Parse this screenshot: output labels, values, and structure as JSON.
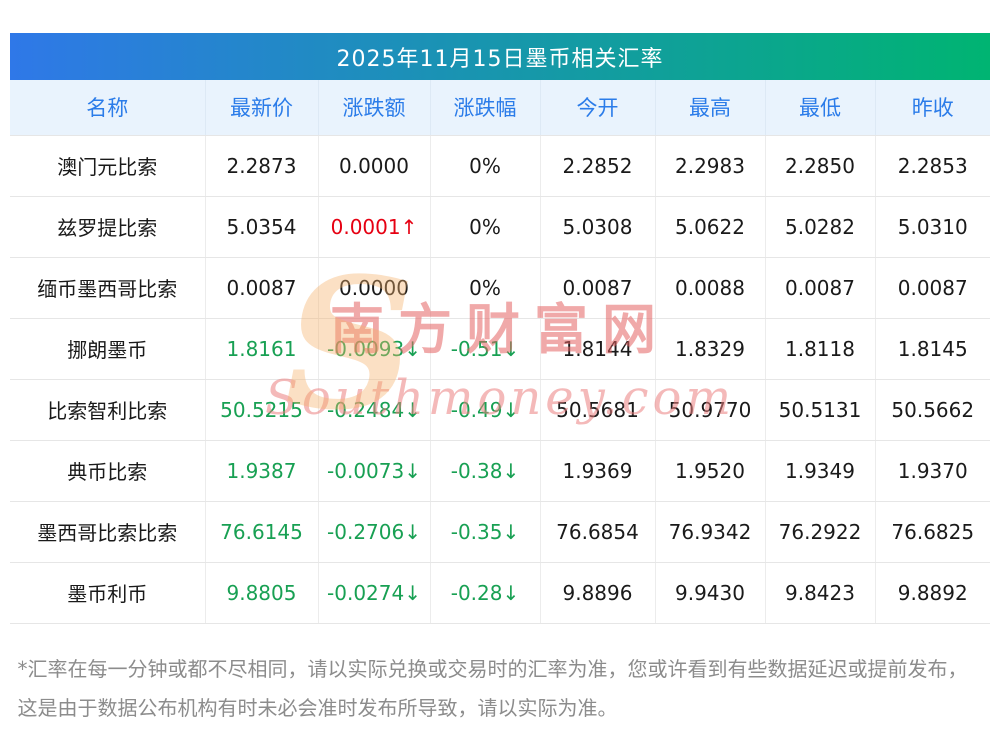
{
  "title": "2025年11月15日墨币相关汇率",
  "colors": {
    "title_gradient_left": "#2f78e8",
    "title_gradient_right": "#00b472",
    "header_bg": "#e9f3fd",
    "header_text": "#2b7ce9",
    "up_red": "#e60012",
    "down_green": "#18a053"
  },
  "table": {
    "headers": [
      "名称",
      "最新价",
      "涨跌额",
      "涨跌幅",
      "今开",
      "最高",
      "最低",
      "昨收"
    ],
    "rows": [
      {
        "cells": [
          {
            "t": "澳门元比索"
          },
          {
            "t": "2.2873"
          },
          {
            "t": "0.0000"
          },
          {
            "t": "0%"
          },
          {
            "t": "2.2852"
          },
          {
            "t": "2.2983"
          },
          {
            "t": "2.2850"
          },
          {
            "t": "2.2853"
          }
        ]
      },
      {
        "cells": [
          {
            "t": "兹罗提比索"
          },
          {
            "t": "5.0354"
          },
          {
            "t": "0.0001↑",
            "c": "r"
          },
          {
            "t": "0%"
          },
          {
            "t": "5.0308"
          },
          {
            "t": "5.0622"
          },
          {
            "t": "5.0282"
          },
          {
            "t": "5.0310"
          }
        ]
      },
      {
        "cells": [
          {
            "t": "缅币墨西哥比索"
          },
          {
            "t": "0.0087"
          },
          {
            "t": "0.0000"
          },
          {
            "t": "0%"
          },
          {
            "t": "0.0087"
          },
          {
            "t": "0.0088"
          },
          {
            "t": "0.0087"
          },
          {
            "t": "0.0087"
          }
        ]
      },
      {
        "cells": [
          {
            "t": "挪朗墨币"
          },
          {
            "t": "1.8161",
            "c": "g"
          },
          {
            "t": "-0.0093↓",
            "c": "g"
          },
          {
            "t": "-0.51↓",
            "c": "g"
          },
          {
            "t": "1.8144"
          },
          {
            "t": "1.8329"
          },
          {
            "t": "1.8118"
          },
          {
            "t": "1.8145"
          }
        ]
      },
      {
        "cells": [
          {
            "t": "比索智利比索"
          },
          {
            "t": "50.5215",
            "c": "g"
          },
          {
            "t": "-0.2484↓",
            "c": "g"
          },
          {
            "t": "-0.49↓",
            "c": "g"
          },
          {
            "t": "50.5681"
          },
          {
            "t": "50.9770"
          },
          {
            "t": "50.5131"
          },
          {
            "t": "50.5662"
          }
        ]
      },
      {
        "cells": [
          {
            "t": "典币比索"
          },
          {
            "t": "1.9387",
            "c": "g"
          },
          {
            "t": "-0.0073↓",
            "c": "g"
          },
          {
            "t": "-0.38↓",
            "c": "g"
          },
          {
            "t": "1.9369"
          },
          {
            "t": "1.9520"
          },
          {
            "t": "1.9349"
          },
          {
            "t": "1.9370"
          }
        ]
      },
      {
        "cells": [
          {
            "t": "墨西哥比索比索"
          },
          {
            "t": "76.6145",
            "c": "g"
          },
          {
            "t": "-0.2706↓",
            "c": "g"
          },
          {
            "t": "-0.35↓",
            "c": "g"
          },
          {
            "t": "76.6854"
          },
          {
            "t": "76.9342"
          },
          {
            "t": "76.2922"
          },
          {
            "t": "76.6825"
          }
        ]
      },
      {
        "cells": [
          {
            "t": "墨币利币"
          },
          {
            "t": "9.8805",
            "c": "g"
          },
          {
            "t": "-0.0274↓",
            "c": "g"
          },
          {
            "t": "-0.28↓",
            "c": "g"
          },
          {
            "t": "9.8896"
          },
          {
            "t": "9.9430"
          },
          {
            "t": "9.8423"
          },
          {
            "t": "9.8892"
          }
        ]
      }
    ]
  },
  "watermark": {
    "swoosh": "S",
    "line1": "南方财富网",
    "line2": "Southmoney.com"
  },
  "footnote": "*汇率在每一分钟或都不尽相同，请以实际兑换或交易时的汇率为准，您或许看到有些数据延迟或提前发布，这是由于数据公布机构有时未必会准时发布所导致，请以实际为准。"
}
